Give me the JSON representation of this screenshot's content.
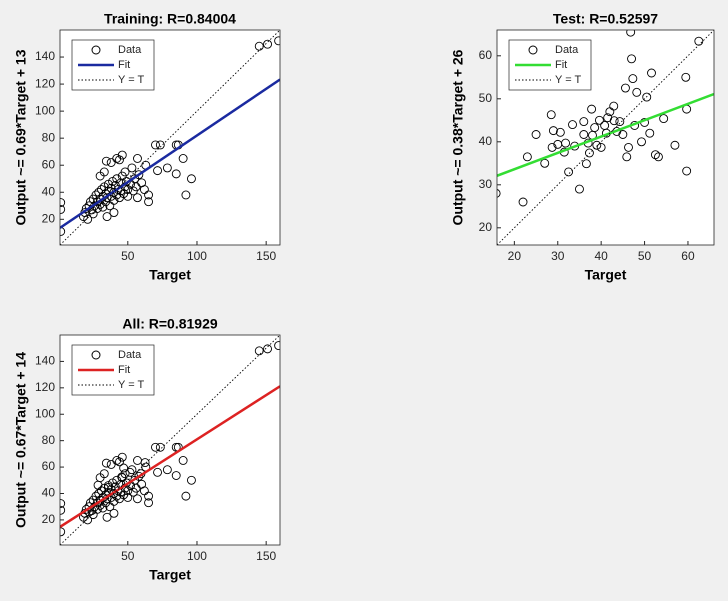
{
  "chart_data": [
    {
      "type": "scatter",
      "title": "Training: R=0.84004",
      "xlabel": "Target",
      "ylabel": "Output ~= 0.69*Target + 13",
      "xlim": [
        1,
        160
      ],
      "ylim": [
        1,
        160
      ],
      "xticks": [
        50,
        100,
        150
      ],
      "yticks": [
        20,
        40,
        60,
        80,
        100,
        120,
        140
      ],
      "series": [
        {
          "name": "Data",
          "marker": "circle",
          "color": "#000000",
          "x": [
            18,
            19,
            20,
            21,
            22,
            23,
            24,
            25,
            25,
            26,
            27,
            28,
            28,
            29,
            30,
            30,
            31,
            32,
            32,
            33,
            34,
            34,
            35,
            36,
            36,
            37,
            38,
            38,
            39,
            40,
            40,
            41,
            42,
            42,
            43,
            44,
            45,
            45,
            46,
            47,
            48,
            48,
            49,
            50,
            50,
            52,
            53,
            54,
            55,
            56,
            57,
            58,
            60,
            62,
            63,
            65,
            65,
            35,
            40,
            30,
            44,
            38,
            33,
            1.5,
            1.5,
            1.5,
            159,
            151,
            145,
            96,
            92,
            90,
            85,
            86.5,
            73.5,
            70,
            71.5,
            78.6,
            85,
            57,
            42,
            34.5,
            46
          ],
          "values": [
            22,
            25,
            28,
            20,
            30,
            33,
            27,
            35,
            24,
            30,
            38,
            33,
            28,
            40,
            35,
            31,
            42,
            37,
            29,
            44,
            39,
            33,
            36,
            46,
            41,
            30,
            43,
            37,
            48,
            40,
            34,
            45,
            38,
            50,
            42,
            36,
            47,
            41,
            52,
            39,
            44,
            55,
            48,
            42,
            37,
            46,
            58,
            41,
            50,
            44,
            36,
            53,
            47,
            42,
            60,
            33,
            38,
            22,
            25,
            52,
            64,
            62,
            55,
            32.4,
            27.3,
            11,
            152,
            149.5,
            148,
            50,
            38,
            65,
            75,
            75,
            75,
            75,
            56,
            58,
            53.6,
            65,
            65,
            63,
            67.5
          ]
        },
        {
          "name": "Fit",
          "linestyle": "solid",
          "color": "#1a2aa0",
          "x": [
            1,
            160
          ],
          "values": [
            13.7,
            123.4
          ]
        },
        {
          "name": "Y = T",
          "linestyle": "dotted",
          "color": "#000000",
          "x": [
            1,
            160
          ],
          "values": [
            1,
            160
          ]
        }
      ]
    },
    {
      "type": "scatter",
      "title": "Test: R=0.52597",
      "xlabel": "Target",
      "ylabel": "Output ~= 0.38*Target + 26",
      "xlim": [
        16,
        66
      ],
      "ylim": [
        16,
        66
      ],
      "xticks": [
        20,
        30,
        40,
        50,
        60
      ],
      "yticks": [
        20,
        30,
        40,
        50,
        60
      ],
      "series": [
        {
          "name": "Data",
          "marker": "circle",
          "color": "#000000",
          "x": [
            15.8,
            22,
            23,
            25,
            27,
            28.5,
            28.7,
            29,
            30,
            31.5,
            31.8,
            32.5,
            33.4,
            33.9,
            35,
            36,
            36,
            36.6,
            37,
            37.3,
            37.8,
            38,
            38.5,
            39,
            39.6,
            40,
            40.8,
            41.2,
            42,
            42.9,
            43.6,
            44.3,
            45,
            45.6,
            45.9,
            46.3,
            46.8,
            47,
            47.3,
            47.7,
            48.2,
            49.3,
            50,
            50.5,
            51.2,
            51.6,
            52.5,
            53.2,
            54.4,
            57,
            59.5,
            59.7,
            59.7,
            62.5,
            43,
            30.6,
            41.5
          ],
          "values": [
            28,
            26,
            36.5,
            41.7,
            35,
            46.3,
            38.7,
            42.6,
            39.4,
            37.6,
            39.7,
            33,
            44,
            39,
            29,
            41.7,
            44.7,
            34.9,
            39.7,
            37.4,
            47.6,
            41.5,
            43.3,
            39.2,
            45,
            38.7,
            43.8,
            42,
            47,
            48.3,
            42.4,
            44.7,
            41.7,
            52.5,
            36.5,
            38.7,
            65.5,
            59.3,
            54.7,
            43.8,
            51.5,
            40,
            44.5,
            50.4,
            42,
            56,
            37,
            36.5,
            45.4,
            39.2,
            55,
            47.6,
            33.2,
            63.4,
            44.9,
            42.2,
            45.6
          ]
        },
        {
          "name": "Fit",
          "linestyle": "solid",
          "color": "#33dd33",
          "x": [
            16,
            66
          ],
          "values": [
            32.1,
            51.1
          ]
        },
        {
          "name": "Y = T",
          "linestyle": "dotted",
          "color": "#000000",
          "x": [
            16,
            66
          ],
          "values": [
            16,
            66
          ]
        }
      ]
    },
    {
      "type": "scatter",
      "title": "All: R=0.81929",
      "xlabel": "Target",
      "ylabel": "Output ~= 0.67*Target + 14",
      "xlim": [
        1,
        160
      ],
      "ylim": [
        1,
        160
      ],
      "xticks": [
        50,
        100,
        150
      ],
      "yticks": [
        20,
        40,
        60,
        80,
        100,
        120,
        140
      ],
      "series": [
        {
          "name": "Data",
          "marker": "circle",
          "color": "#000000",
          "x": [
            18,
            19,
            20,
            21,
            22,
            23,
            24,
            25,
            25,
            26,
            27,
            28,
            28,
            29,
            30,
            30,
            31,
            32,
            32,
            33,
            34,
            34,
            35,
            36,
            36,
            37,
            38,
            38,
            39,
            40,
            40,
            41,
            42,
            42,
            43,
            44,
            45,
            45,
            46,
            47,
            48,
            48,
            49,
            50,
            50,
            52,
            53,
            54,
            55,
            56,
            57,
            58,
            60,
            62,
            63,
            65,
            65,
            35,
            40,
            30,
            44,
            38,
            33,
            1.5,
            1.5,
            1.5,
            159,
            151,
            145,
            96,
            92,
            90,
            85,
            86.5,
            73.5,
            70,
            71.5,
            78.6,
            85,
            57,
            42,
            34.5,
            46,
            22,
            28.5,
            36,
            45.6,
            47,
            51.6,
            59.5,
            62.5
          ],
          "values": [
            22,
            25,
            28,
            20,
            30,
            33,
            27,
            35,
            24,
            30,
            38,
            33,
            28,
            40,
            35,
            31,
            42,
            37,
            29,
            44,
            39,
            33,
            36,
            46,
            41,
            30,
            43,
            37,
            48,
            40,
            34,
            45,
            38,
            50,
            42,
            36,
            47,
            41,
            52,
            39,
            44,
            55,
            48,
            42,
            37,
            46,
            58,
            41,
            50,
            44,
            36,
            53,
            47,
            42,
            60,
            33,
            38,
            22,
            25,
            52,
            64,
            62,
            55,
            32.4,
            27.3,
            11,
            152,
            149.5,
            148,
            50,
            38,
            65,
            75,
            75,
            75,
            75,
            56,
            58,
            53.6,
            65,
            65,
            63,
            67.5,
            26,
            46.3,
            44.7,
            52.5,
            59.3,
            56,
            55,
            63.4
          ]
        },
        {
          "name": "Fit",
          "linestyle": "solid",
          "color": "#dd2222",
          "x": [
            1,
            160
          ],
          "values": [
            14.7,
            121.2
          ]
        },
        {
          "name": "Y = T",
          "linestyle": "dotted",
          "color": "#000000",
          "x": [
            1,
            160
          ],
          "values": [
            1,
            160
          ]
        }
      ]
    }
  ]
}
